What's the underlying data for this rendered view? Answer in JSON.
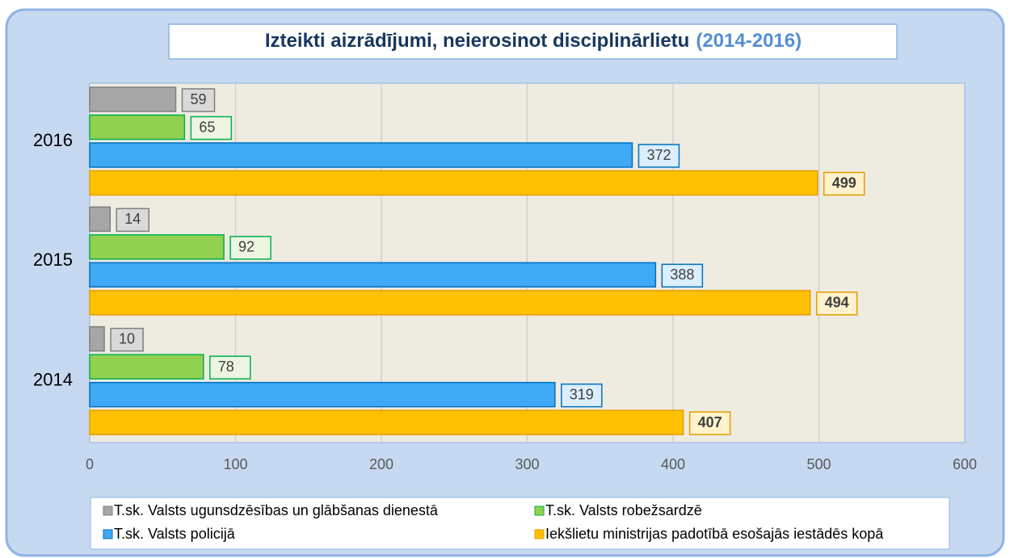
{
  "chart_data": {
    "type": "bar",
    "orientation": "horizontal",
    "title": "Izteikti aizrādījumi, neierosinot disciplinārlietu",
    "subtitle": "(2014-2016)",
    "categories": [
      "2014",
      "2015",
      "2016"
    ],
    "series": [
      {
        "name": "T.sk. Valsts ugunsdzēsības un glābšanas dienestā",
        "color": "#a6a6a6",
        "values": [
          10,
          14,
          59
        ]
      },
      {
        "name": "T.sk. Valsts robežsardzē",
        "color": "#92d050",
        "values": [
          78,
          92,
          65
        ]
      },
      {
        "name": "T.sk. Valsts policijā",
        "color": "#3fa9f5",
        "values": [
          319,
          388,
          372
        ]
      },
      {
        "name": "Iekšlietu ministrijas padotībā esošajās iestādēs kopā",
        "color": "#ffc000",
        "values": [
          407,
          494,
          499
        ]
      }
    ],
    "xlim": [
      0,
      600
    ],
    "xticks": [
      0,
      100,
      200,
      300,
      400,
      500,
      600
    ],
    "grid": true,
    "legend": "bottom"
  }
}
